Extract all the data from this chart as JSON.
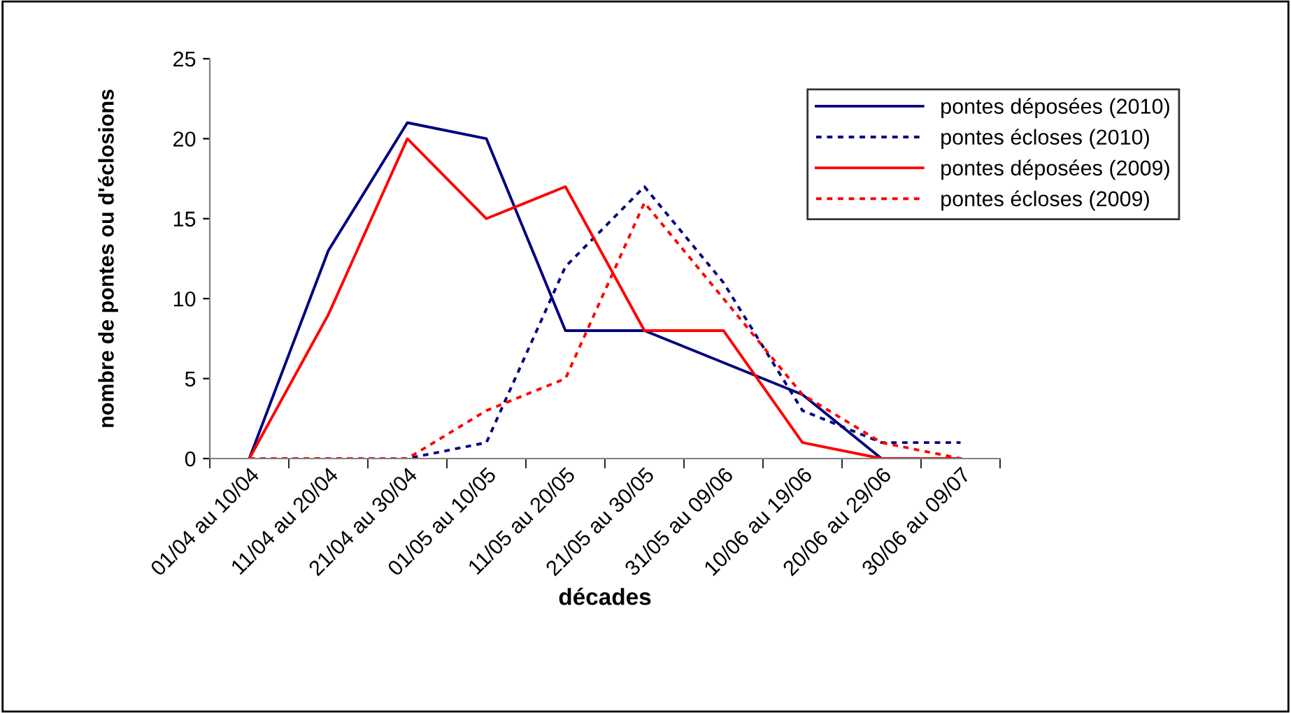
{
  "chart_data": {
    "type": "line",
    "xlabel": "décades",
    "ylabel": "nombre de pontes ou d'éclosions",
    "categories": [
      "01/04 au 10/04",
      "11/04 au 20/04",
      "21/04 au 30/04",
      "01/05 au 10/05",
      "11/05 au 20/05",
      "21/05 au 30/05",
      "31/05 au 09/06",
      "10/06 au 19/06",
      "20/06 au 29/06",
      "30/06 au 09/07"
    ],
    "series": [
      {
        "name": "pontes déposées (2010)",
        "color": "#000080",
        "line_style": "solid",
        "values": [
          0,
          13,
          21,
          20,
          8,
          8,
          6,
          4,
          0,
          null
        ]
      },
      {
        "name": "pontes écloses (2010)",
        "color": "#000080",
        "line_style": "dotted",
        "values": [
          0,
          0,
          0,
          1,
          12,
          17,
          11,
          3,
          1,
          1
        ]
      },
      {
        "name": "pontes déposées (2009)",
        "color": "#ff0000",
        "line_style": "solid",
        "values": [
          0,
          9,
          20,
          15,
          17,
          8,
          8,
          1,
          0,
          0
        ]
      },
      {
        "name": "pontes écloses (2009)",
        "color": "#ff0000",
        "line_style": "dotted",
        "values": [
          0,
          0,
          0,
          3,
          5,
          16,
          10,
          4,
          1,
          0
        ]
      }
    ],
    "ylim": [
      0,
      25
    ],
    "yticks": [
      0,
      5,
      10,
      15,
      20,
      25
    ],
    "grid": false,
    "legend": "top right",
    "marker": "none"
  }
}
